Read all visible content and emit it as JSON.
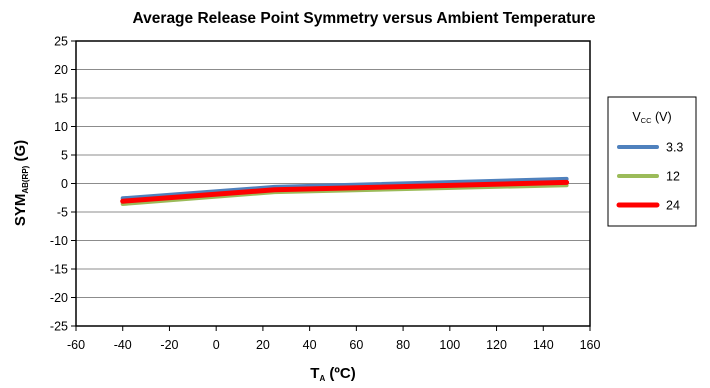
{
  "chart_data": {
    "type": "line",
    "title": "Average Release Point Symmetry versus Ambient Temperature",
    "xlabel": {
      "main": "T",
      "sub": "A",
      "unit": " (ºC)"
    },
    "ylabel": {
      "main": "SYM",
      "sub": "AB(RP)",
      "unit": " (G)"
    },
    "xlim": [
      -60,
      160
    ],
    "ylim": [
      -25,
      25
    ],
    "xticks": [
      -60,
      -40,
      -20,
      0,
      20,
      40,
      60,
      80,
      100,
      120,
      140,
      160
    ],
    "yticks": [
      25,
      20,
      15,
      10,
      5,
      0,
      -5,
      -10,
      -15,
      -20,
      -25
    ],
    "grid": true,
    "legend": {
      "title_main": "V",
      "title_sub": "CC",
      "title_unit": " (V)",
      "position": "right"
    },
    "series": [
      {
        "name": "3.3",
        "color": "#4f81bd",
        "x": [
          -40,
          25,
          150
        ],
        "y": [
          -2.6,
          -0.6,
          0.8
        ]
      },
      {
        "name": "12",
        "color": "#9bbb59",
        "x": [
          -40,
          25,
          150
        ],
        "y": [
          -3.6,
          -1.5,
          -0.3
        ]
      },
      {
        "name": "24",
        "color": "#ff0000",
        "x": [
          -40,
          25,
          150
        ],
        "y": [
          -3.1,
          -1.1,
          0.2
        ]
      }
    ]
  }
}
